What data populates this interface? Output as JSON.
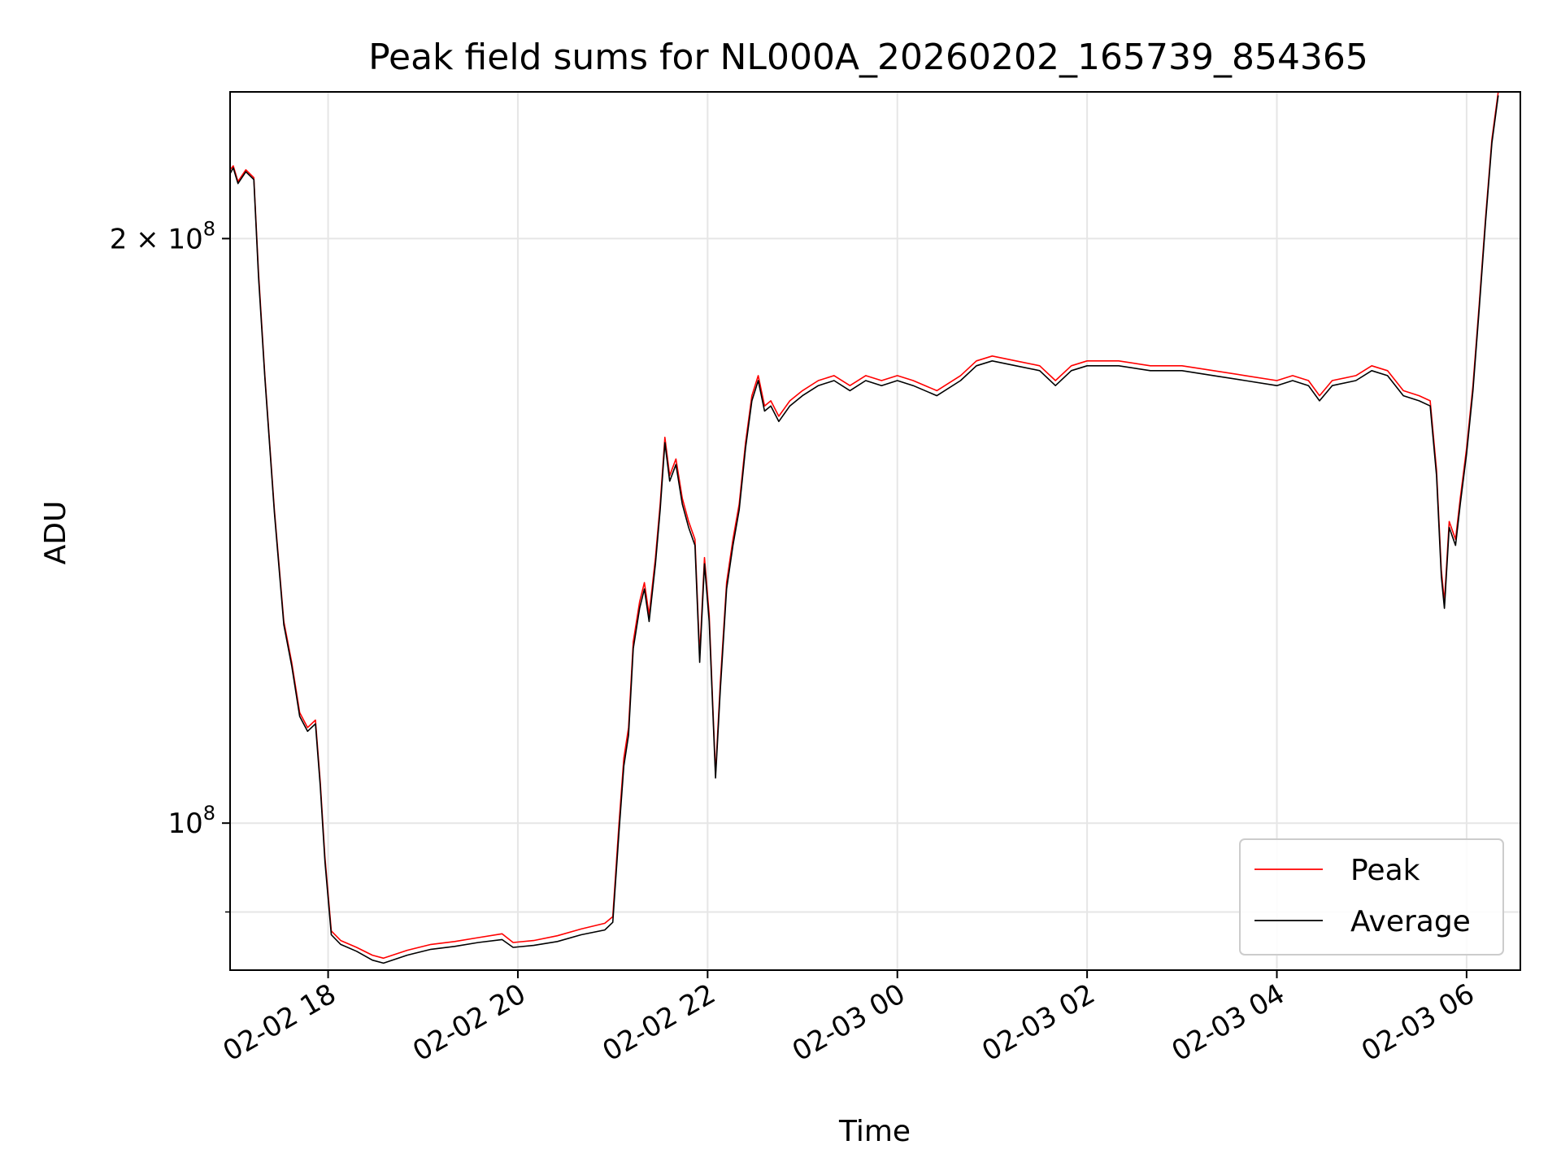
{
  "chart_data": {
    "type": "line",
    "title": "Peak field sums for NL000A_20260202_165739_854365",
    "xlabel": "Time",
    "ylabel": "ADU",
    "y_scale": "log",
    "xlim": [
      "2026-02-02T16:58:00",
      "2026-02-03T06:34:00"
    ],
    "ylim": [
      84000000,
      238000000
    ],
    "grid": true,
    "legend_position": "lower right",
    "x_ticks": [
      "02-02 18",
      "02-02 20",
      "02-02 22",
      "02-03 00",
      "02-03 02",
      "02-03 04",
      "02-03 06"
    ],
    "y_ticks_major": [
      "2 × 10⁸",
      "10⁸"
    ],
    "y_ticks_minor": [
      90000000
    ],
    "series": [
      {
        "name": "Peak",
        "color": "#ff0000",
        "points": [
          [
            "2026-02-02T16:58",
            217000000
          ],
          [
            "2026-02-02T17:00",
            218000000
          ],
          [
            "2026-02-02T17:03",
            214000000
          ],
          [
            "2026-02-02T17:08",
            217000000
          ],
          [
            "2026-02-02T17:13",
            215000000
          ],
          [
            "2026-02-02T17:16",
            192000000
          ],
          [
            "2026-02-02T17:20",
            170000000
          ],
          [
            "2026-02-02T17:26",
            145000000
          ],
          [
            "2026-02-02T17:32",
            127000000
          ],
          [
            "2026-02-02T17:37",
            121000000
          ],
          [
            "2026-02-02T17:42",
            114000000
          ],
          [
            "2026-02-02T17:47",
            112000000
          ],
          [
            "2026-02-02T17:52",
            113000000
          ],
          [
            "2026-02-02T17:55",
            105000000
          ],
          [
            "2026-02-02T17:58",
            96000000
          ],
          [
            "2026-02-02T18:02",
            88000000
          ],
          [
            "2026-02-02T18:08",
            87000000
          ],
          [
            "2026-02-02T18:18",
            86300000
          ],
          [
            "2026-02-02T18:28",
            85500000
          ],
          [
            "2026-02-02T18:35",
            85200000
          ],
          [
            "2026-02-02T18:50",
            86000000
          ],
          [
            "2026-02-02T19:05",
            86600000
          ],
          [
            "2026-02-02T19:20",
            86900000
          ],
          [
            "2026-02-02T19:35",
            87300000
          ],
          [
            "2026-02-02T19:50",
            87700000
          ],
          [
            "2026-02-02T19:57",
            86800000
          ],
          [
            "2026-02-02T20:10",
            87000000
          ],
          [
            "2026-02-02T20:25",
            87500000
          ],
          [
            "2026-02-02T20:40",
            88200000
          ],
          [
            "2026-02-02T20:55",
            88800000
          ],
          [
            "2026-02-02T21:00",
            89500000
          ],
          [
            "2026-02-02T21:04",
            100000000
          ],
          [
            "2026-02-02T21:07",
            108000000
          ],
          [
            "2026-02-02T21:10",
            112000000
          ],
          [
            "2026-02-02T21:13",
            124000000
          ],
          [
            "2026-02-02T21:17",
            130000000
          ],
          [
            "2026-02-02T21:20",
            133000000
          ],
          [
            "2026-02-02T21:23",
            128000000
          ],
          [
            "2026-02-02T21:27",
            137000000
          ],
          [
            "2026-02-02T21:30",
            146000000
          ],
          [
            "2026-02-02T21:33",
            158000000
          ],
          [
            "2026-02-02T21:36",
            151000000
          ],
          [
            "2026-02-02T21:40",
            154000000
          ],
          [
            "2026-02-02T21:44",
            147000000
          ],
          [
            "2026-02-02T21:48",
            143000000
          ],
          [
            "2026-02-02T21:52",
            140000000
          ],
          [
            "2026-02-02T21:55",
            122000000
          ],
          [
            "2026-02-02T21:58",
            137000000
          ],
          [
            "2026-02-02T22:01",
            128000000
          ],
          [
            "2026-02-02T22:05",
            106000000
          ],
          [
            "2026-02-02T22:08",
            118000000
          ],
          [
            "2026-02-02T22:12",
            133000000
          ],
          [
            "2026-02-02T22:16",
            140000000
          ],
          [
            "2026-02-02T22:20",
            146000000
          ],
          [
            "2026-02-02T22:24",
            157000000
          ],
          [
            "2026-02-02T22:28",
            166000000
          ],
          [
            "2026-02-02T22:32",
            170000000
          ],
          [
            "2026-02-02T22:36",
            164000000
          ],
          [
            "2026-02-02T22:40",
            165000000
          ],
          [
            "2026-02-02T22:45",
            162000000
          ],
          [
            "2026-02-02T22:52",
            165000000
          ],
          [
            "2026-02-02T23:00",
            167000000
          ],
          [
            "2026-02-02T23:10",
            169000000
          ],
          [
            "2026-02-02T23:20",
            170000000
          ],
          [
            "2026-02-02T23:30",
            168000000
          ],
          [
            "2026-02-02T23:40",
            170000000
          ],
          [
            "2026-02-02T23:50",
            169000000
          ],
          [
            "2026-02-03T00:00",
            170000000
          ],
          [
            "2026-02-03T00:10",
            169000000
          ],
          [
            "2026-02-03T00:25",
            167000000
          ],
          [
            "2026-02-03T00:40",
            170000000
          ],
          [
            "2026-02-03T00:50",
            173000000
          ],
          [
            "2026-02-03T01:00",
            174000000
          ],
          [
            "2026-02-03T01:15",
            173000000
          ],
          [
            "2026-02-03T01:30",
            172000000
          ],
          [
            "2026-02-03T01:40",
            169000000
          ],
          [
            "2026-02-03T01:50",
            172000000
          ],
          [
            "2026-02-03T02:00",
            173000000
          ],
          [
            "2026-02-03T02:20",
            173000000
          ],
          [
            "2026-02-03T02:40",
            172000000
          ],
          [
            "2026-02-03T03:00",
            172000000
          ],
          [
            "2026-02-03T03:20",
            171000000
          ],
          [
            "2026-02-03T03:40",
            170000000
          ],
          [
            "2026-02-03T04:00",
            169000000
          ],
          [
            "2026-02-03T04:10",
            170000000
          ],
          [
            "2026-02-03T04:20",
            169000000
          ],
          [
            "2026-02-03T04:27",
            166000000
          ],
          [
            "2026-02-03T04:35",
            169000000
          ],
          [
            "2026-02-03T04:50",
            170000000
          ],
          [
            "2026-02-03T05:00",
            172000000
          ],
          [
            "2026-02-03T05:10",
            171000000
          ],
          [
            "2026-02-03T05:20",
            167000000
          ],
          [
            "2026-02-03T05:30",
            166000000
          ],
          [
            "2026-02-03T05:37",
            165000000
          ],
          [
            "2026-02-03T05:41",
            152000000
          ],
          [
            "2026-02-03T05:44",
            135000000
          ],
          [
            "2026-02-03T05:46",
            130000000
          ],
          [
            "2026-02-03T05:49",
            143000000
          ],
          [
            "2026-02-03T05:53",
            140000000
          ],
          [
            "2026-02-03T05:56",
            147000000
          ],
          [
            "2026-02-03T06:00",
            156000000
          ],
          [
            "2026-02-03T06:04",
            168000000
          ],
          [
            "2026-02-03T06:08",
            185000000
          ],
          [
            "2026-02-03T06:12",
            205000000
          ],
          [
            "2026-02-03T06:16",
            225000000
          ],
          [
            "2026-02-03T06:20",
            238000000
          ]
        ]
      },
      {
        "name": "Average",
        "color": "#000000",
        "points": [
          [
            "2026-02-02T16:58",
            216000000
          ],
          [
            "2026-02-02T17:00",
            217500000
          ],
          [
            "2026-02-02T17:03",
            213500000
          ],
          [
            "2026-02-02T17:08",
            216500000
          ],
          [
            "2026-02-02T17:13",
            214500000
          ],
          [
            "2026-02-02T17:16",
            191000000
          ],
          [
            "2026-02-02T17:20",
            169500000
          ],
          [
            "2026-02-02T17:26",
            144500000
          ],
          [
            "2026-02-02T17:32",
            126500000
          ],
          [
            "2026-02-02T17:37",
            120500000
          ],
          [
            "2026-02-02T17:42",
            113500000
          ],
          [
            "2026-02-02T17:47",
            111500000
          ],
          [
            "2026-02-02T17:52",
            112500000
          ],
          [
            "2026-02-02T17:55",
            104500000
          ],
          [
            "2026-02-02T17:58",
            95500000
          ],
          [
            "2026-02-02T18:02",
            87600000
          ],
          [
            "2026-02-02T18:08",
            86600000
          ],
          [
            "2026-02-02T18:18",
            85900000
          ],
          [
            "2026-02-02T18:28",
            85000000
          ],
          [
            "2026-02-02T18:35",
            84700000
          ],
          [
            "2026-02-02T18:50",
            85500000
          ],
          [
            "2026-02-02T19:05",
            86100000
          ],
          [
            "2026-02-02T19:20",
            86400000
          ],
          [
            "2026-02-02T19:35",
            86800000
          ],
          [
            "2026-02-02T19:50",
            87100000
          ],
          [
            "2026-02-02T19:57",
            86300000
          ],
          [
            "2026-02-02T20:10",
            86500000
          ],
          [
            "2026-02-02T20:25",
            86900000
          ],
          [
            "2026-02-02T20:40",
            87600000
          ],
          [
            "2026-02-02T20:55",
            88100000
          ],
          [
            "2026-02-02T21:00",
            88900000
          ],
          [
            "2026-02-02T21:04",
            99000000
          ],
          [
            "2026-02-02T21:07",
            107000000
          ],
          [
            "2026-02-02T21:10",
            111000000
          ],
          [
            "2026-02-02T21:13",
            123000000
          ],
          [
            "2026-02-02T21:17",
            129000000
          ],
          [
            "2026-02-02T21:20",
            132000000
          ],
          [
            "2026-02-02T21:23",
            127000000
          ],
          [
            "2026-02-02T21:27",
            136000000
          ],
          [
            "2026-02-02T21:30",
            145000000
          ],
          [
            "2026-02-02T21:33",
            157000000
          ],
          [
            "2026-02-02T21:36",
            150000000
          ],
          [
            "2026-02-02T21:40",
            153000000
          ],
          [
            "2026-02-02T21:44",
            146000000
          ],
          [
            "2026-02-02T21:48",
            142000000
          ],
          [
            "2026-02-02T21:52",
            139000000
          ],
          [
            "2026-02-02T21:55",
            121000000
          ],
          [
            "2026-02-02T21:58",
            136000000
          ],
          [
            "2026-02-02T22:01",
            127000000
          ],
          [
            "2026-02-02T22:05",
            105500000
          ],
          [
            "2026-02-02T22:08",
            117000000
          ],
          [
            "2026-02-02T22:12",
            132000000
          ],
          [
            "2026-02-02T22:16",
            139000000
          ],
          [
            "2026-02-02T22:20",
            145000000
          ],
          [
            "2026-02-02T22:24",
            156000000
          ],
          [
            "2026-02-02T22:28",
            165000000
          ],
          [
            "2026-02-02T22:32",
            169000000
          ],
          [
            "2026-02-02T22:36",
            163000000
          ],
          [
            "2026-02-02T22:40",
            164000000
          ],
          [
            "2026-02-02T22:45",
            161000000
          ],
          [
            "2026-02-02T22:52",
            164000000
          ],
          [
            "2026-02-02T23:00",
            166000000
          ],
          [
            "2026-02-02T23:10",
            168000000
          ],
          [
            "2026-02-02T23:20",
            169000000
          ],
          [
            "2026-02-02T23:30",
            167000000
          ],
          [
            "2026-02-02T23:40",
            169000000
          ],
          [
            "2026-02-02T23:50",
            168000000
          ],
          [
            "2026-02-03T00:00",
            169000000
          ],
          [
            "2026-02-03T00:10",
            168000000
          ],
          [
            "2026-02-03T00:25",
            166000000
          ],
          [
            "2026-02-03T00:40",
            169000000
          ],
          [
            "2026-02-03T00:50",
            172000000
          ],
          [
            "2026-02-03T01:00",
            173000000
          ],
          [
            "2026-02-03T01:15",
            172000000
          ],
          [
            "2026-02-03T01:30",
            171000000
          ],
          [
            "2026-02-03T01:40",
            168000000
          ],
          [
            "2026-02-03T01:50",
            171000000
          ],
          [
            "2026-02-03T02:00",
            172000000
          ],
          [
            "2026-02-03T02:20",
            172000000
          ],
          [
            "2026-02-03T02:40",
            171000000
          ],
          [
            "2026-02-03T03:00",
            171000000
          ],
          [
            "2026-02-03T03:20",
            170000000
          ],
          [
            "2026-02-03T03:40",
            169000000
          ],
          [
            "2026-02-03T04:00",
            168000000
          ],
          [
            "2026-02-03T04:10",
            169000000
          ],
          [
            "2026-02-03T04:20",
            168000000
          ],
          [
            "2026-02-03T04:27",
            165000000
          ],
          [
            "2026-02-03T04:35",
            168000000
          ],
          [
            "2026-02-03T04:50",
            169000000
          ],
          [
            "2026-02-03T05:00",
            171000000
          ],
          [
            "2026-02-03T05:10",
            170000000
          ],
          [
            "2026-02-03T05:20",
            166000000
          ],
          [
            "2026-02-03T05:30",
            165000000
          ],
          [
            "2026-02-03T05:37",
            164000000
          ],
          [
            "2026-02-03T05:41",
            151000000
          ],
          [
            "2026-02-03T05:44",
            134000000
          ],
          [
            "2026-02-03T05:46",
            129000000
          ],
          [
            "2026-02-03T05:49",
            142000000
          ],
          [
            "2026-02-03T05:53",
            139000000
          ],
          [
            "2026-02-03T05:56",
            146000000
          ],
          [
            "2026-02-03T06:00",
            155000000
          ],
          [
            "2026-02-03T06:04",
            167000000
          ],
          [
            "2026-02-03T06:08",
            184000000
          ],
          [
            "2026-02-03T06:12",
            204000000
          ],
          [
            "2026-02-03T06:16",
            224000000
          ],
          [
            "2026-02-03T06:20",
            237000000
          ]
        ]
      }
    ]
  }
}
